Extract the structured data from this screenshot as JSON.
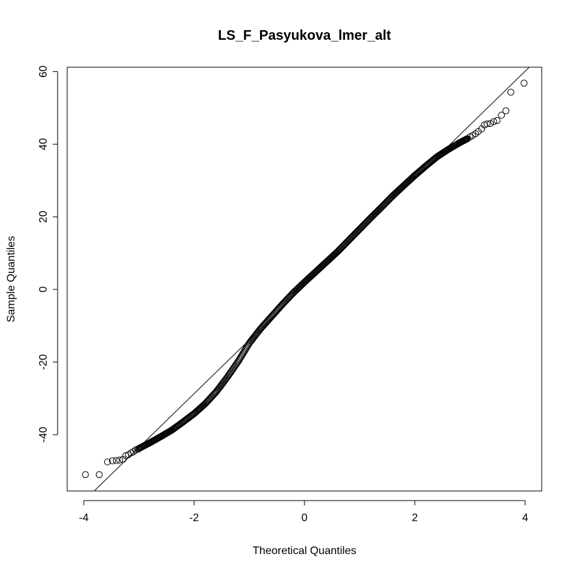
{
  "chart_data": {
    "type": "scatter",
    "title": "LS_F_Pasyukova_lmer_alt",
    "xlabel": "Theoretical Quantiles",
    "ylabel": "Sample Quantiles",
    "xlim": [
      -4.3,
      4.3
    ],
    "ylim": [
      -55.5,
      61.2
    ],
    "x_ticks": [
      -4,
      -2,
      0,
      2,
      4
    ],
    "y_ticks": [
      -40,
      -20,
      0,
      20,
      40,
      60
    ],
    "x_tick_labels": [
      "-4",
      "-2",
      "0",
      "2",
      "4"
    ],
    "y_tick_labels": [
      "-40",
      "-20",
      "0",
      "20",
      "40",
      "60"
    ],
    "marker": "open-circle",
    "reference_line": {
      "intercept": 0.9,
      "slope": 14.8
    },
    "tail_points": [
      {
        "x": -3.97,
        "y": -51.0
      },
      {
        "x": -3.72,
        "y": -51.0
      },
      {
        "x": -3.57,
        "y": -47.5
      },
      {
        "x": -3.48,
        "y": -47.2
      },
      {
        "x": -3.41,
        "y": -47.1
      },
      {
        "x": -3.35,
        "y": -47.0
      },
      {
        "x": -3.29,
        "y": -46.8
      },
      {
        "x": -3.24,
        "y": -45.8
      },
      {
        "x": -3.19,
        "y": -45.5
      },
      {
        "x": -3.14,
        "y": -45.0
      },
      {
        "x": -3.1,
        "y": -44.7
      },
      {
        "x": -3.06,
        "y": -44.2
      },
      {
        "x": -3.02,
        "y": -44.0
      },
      {
        "x": 2.95,
        "y": 41.5
      },
      {
        "x": 3.0,
        "y": 42.0
      },
      {
        "x": 3.05,
        "y": 42.4
      },
      {
        "x": 3.1,
        "y": 42.9
      },
      {
        "x": 3.15,
        "y": 43.5
      },
      {
        "x": 3.21,
        "y": 44.2
      },
      {
        "x": 3.26,
        "y": 45.3
      },
      {
        "x": 3.31,
        "y": 45.6
      },
      {
        "x": 3.37,
        "y": 45.7
      },
      {
        "x": 3.43,
        "y": 46.2
      },
      {
        "x": 3.49,
        "y": 46.5
      },
      {
        "x": 3.57,
        "y": 48.0
      },
      {
        "x": 3.65,
        "y": 49.2
      },
      {
        "x": 3.74,
        "y": 54.3
      },
      {
        "x": 3.98,
        "y": 56.8
      }
    ],
    "body_curve": [
      {
        "x": -3.0,
        "y": -43.8
      },
      {
        "x": -2.8,
        "y": -42.2
      },
      {
        "x": -2.6,
        "y": -40.5
      },
      {
        "x": -2.4,
        "y": -38.7
      },
      {
        "x": -2.2,
        "y": -36.5
      },
      {
        "x": -2.0,
        "y": -34.2
      },
      {
        "x": -1.8,
        "y": -31.5
      },
      {
        "x": -1.6,
        "y": -28.2
      },
      {
        "x": -1.4,
        "y": -24.2
      },
      {
        "x": -1.2,
        "y": -19.8
      },
      {
        "x": -1.0,
        "y": -14.8
      },
      {
        "x": -0.8,
        "y": -10.9
      },
      {
        "x": -0.6,
        "y": -7.5
      },
      {
        "x": -0.4,
        "y": -4.1
      },
      {
        "x": -0.2,
        "y": -0.9
      },
      {
        "x": 0.0,
        "y": 2.0
      },
      {
        "x": 0.2,
        "y": 4.8
      },
      {
        "x": 0.4,
        "y": 7.6
      },
      {
        "x": 0.6,
        "y": 10.4
      },
      {
        "x": 0.8,
        "y": 13.5
      },
      {
        "x": 1.0,
        "y": 16.6
      },
      {
        "x": 1.2,
        "y": 19.7
      },
      {
        "x": 1.4,
        "y": 22.7
      },
      {
        "x": 1.6,
        "y": 25.8
      },
      {
        "x": 1.8,
        "y": 28.6
      },
      {
        "x": 2.0,
        "y": 31.4
      },
      {
        "x": 2.2,
        "y": 34.0
      },
      {
        "x": 2.4,
        "y": 36.5
      },
      {
        "x": 2.6,
        "y": 38.5
      },
      {
        "x": 2.8,
        "y": 40.3
      },
      {
        "x": 2.95,
        "y": 41.5
      }
    ]
  }
}
